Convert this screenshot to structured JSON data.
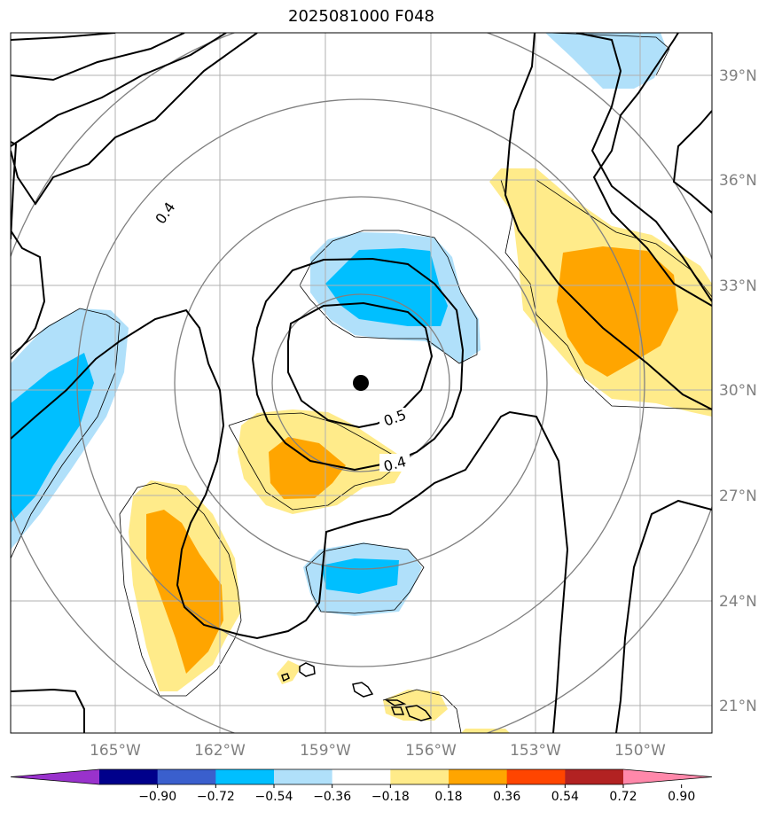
{
  "title": "2025081000 F048",
  "map": {
    "lon_labels": [
      "165°W",
      "162°W",
      "159°W",
      "156°W",
      "153°W",
      "150°W"
    ],
    "lat_labels": [
      "39°N",
      "36°N",
      "33°N",
      "30°N",
      "27°N",
      "24°N",
      "21°N"
    ],
    "contour_labels": [
      "0.4",
      "0.5",
      "0.4"
    ],
    "center_marker": "storm-center-dot"
  },
  "colorbar": {
    "ticks": [
      "−0.90",
      "−0.72",
      "−0.54",
      "−0.36",
      "−0.18",
      "0.18",
      "0.36",
      "0.54",
      "0.72",
      "0.90"
    ],
    "colors": [
      "#9932cc",
      "#00008b",
      "#3a5fcd",
      "#00bfff",
      "#b0e0fa",
      "#ffffff",
      "#ffeb8a",
      "#ffa500",
      "#ff4500",
      "#b22222",
      "#ff88aa"
    ]
  },
  "colors": {
    "pos_light": "#ffeb8a",
    "pos_mid": "#ffa500",
    "neg_light": "#b0e0fa",
    "neg_mid": "#00bfff",
    "grid": "#b0b0b0",
    "range_ring": "#808080"
  }
}
